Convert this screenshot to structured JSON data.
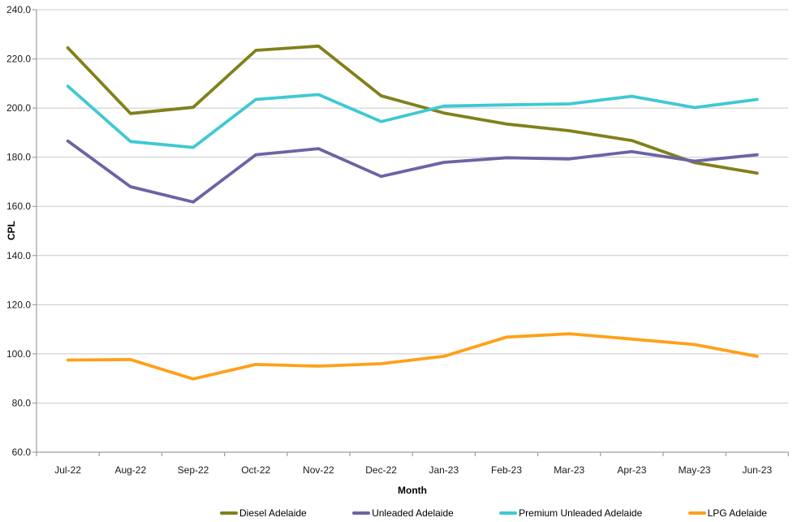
{
  "chart_data": {
    "type": "line",
    "title": "",
    "xlabel": "Month",
    "ylabel": "CPL",
    "ylim": [
      60,
      240
    ],
    "ytick_step": 20,
    "ytick_labels": [
      "240.0",
      "220.0",
      "200.0",
      "180.0",
      "160.0",
      "140.0",
      "120.0",
      "100.0",
      "80.0",
      "60.0"
    ],
    "grid": "horizontal gridlines on",
    "legend_position": "bottom",
    "categories": [
      "Jul-22",
      "Aug-22",
      "Sep-22",
      "Oct-22",
      "Nov-22",
      "Dec-22",
      "Jan-23",
      "Feb-23",
      "Mar-23",
      "Apr-23",
      "May-23",
      "Jun-23"
    ],
    "series": [
      {
        "name": "Diesel Adelaide",
        "color": "#81801B",
        "values": [
          224.5,
          197.8,
          200.3,
          223.5,
          225.2,
          205.0,
          198.0,
          193.5,
          190.8,
          186.8,
          177.8,
          173.5
        ]
      },
      {
        "name": "Unleaded Adelaide",
        "color": "#6A64A5",
        "values": [
          186.6,
          168.0,
          161.8,
          181.0,
          183.5,
          172.2,
          177.9,
          179.8,
          179.3,
          182.3,
          178.4,
          181.0
        ]
      },
      {
        "name": "Premium Unleaded Adelaide",
        "color": "#3EC9D3",
        "values": [
          208.9,
          186.4,
          184.0,
          203.5,
          205.5,
          194.5,
          200.8,
          201.3,
          201.7,
          204.8,
          200.2,
          203.5
        ]
      },
      {
        "name": "LPG Adelaide",
        "color": "#FFA019",
        "values": [
          97.5,
          97.7,
          89.8,
          95.7,
          95.0,
          96.0,
          99.0,
          106.8,
          108.2,
          106.0,
          103.8,
          99.0
        ]
      }
    ],
    "colors": {
      "gridline": "#C9C9C9",
      "axis": "#9E9E9E",
      "tick_text": "#1a1a1a"
    }
  }
}
